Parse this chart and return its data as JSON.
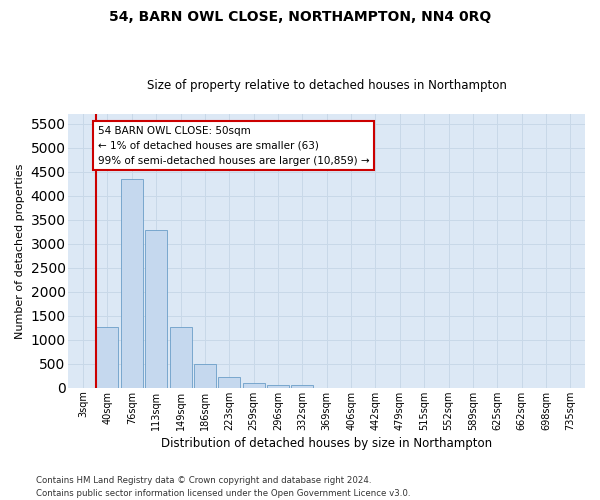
{
  "title": "54, BARN OWL CLOSE, NORTHAMPTON, NN4 0RQ",
  "subtitle": "Size of property relative to detached houses in Northampton",
  "xlabel": "Distribution of detached houses by size in Northampton",
  "ylabel": "Number of detached properties",
  "bar_color": "#c5d8ee",
  "bar_edge_color": "#6b9ec8",
  "grid_color": "#c8d8e8",
  "background_color": "#dce8f5",
  "vline_color": "#cc0000",
  "annotation_box_ec": "#cc0000",
  "annotation_text": "54 BARN OWL CLOSE: 50sqm\n← 1% of detached houses are smaller (63)\n99% of semi-detached houses are larger (10,859) →",
  "footnote": "Contains HM Land Registry data © Crown copyright and database right 2024.\nContains public sector information licensed under the Open Government Licence v3.0.",
  "categories": [
    "3sqm",
    "40sqm",
    "76sqm",
    "113sqm",
    "149sqm",
    "186sqm",
    "223sqm",
    "259sqm",
    "296sqm",
    "332sqm",
    "369sqm",
    "406sqm",
    "442sqm",
    "479sqm",
    "515sqm",
    "552sqm",
    "589sqm",
    "625sqm",
    "662sqm",
    "698sqm",
    "735sqm"
  ],
  "values": [
    0,
    1260,
    4350,
    3280,
    1260,
    490,
    215,
    95,
    60,
    55,
    0,
    0,
    0,
    0,
    0,
    0,
    0,
    0,
    0,
    0,
    0
  ],
  "ylim": [
    0,
    5700
  ],
  "yticks": [
    0,
    500,
    1000,
    1500,
    2000,
    2500,
    3000,
    3500,
    4000,
    4500,
    5000,
    5500
  ]
}
